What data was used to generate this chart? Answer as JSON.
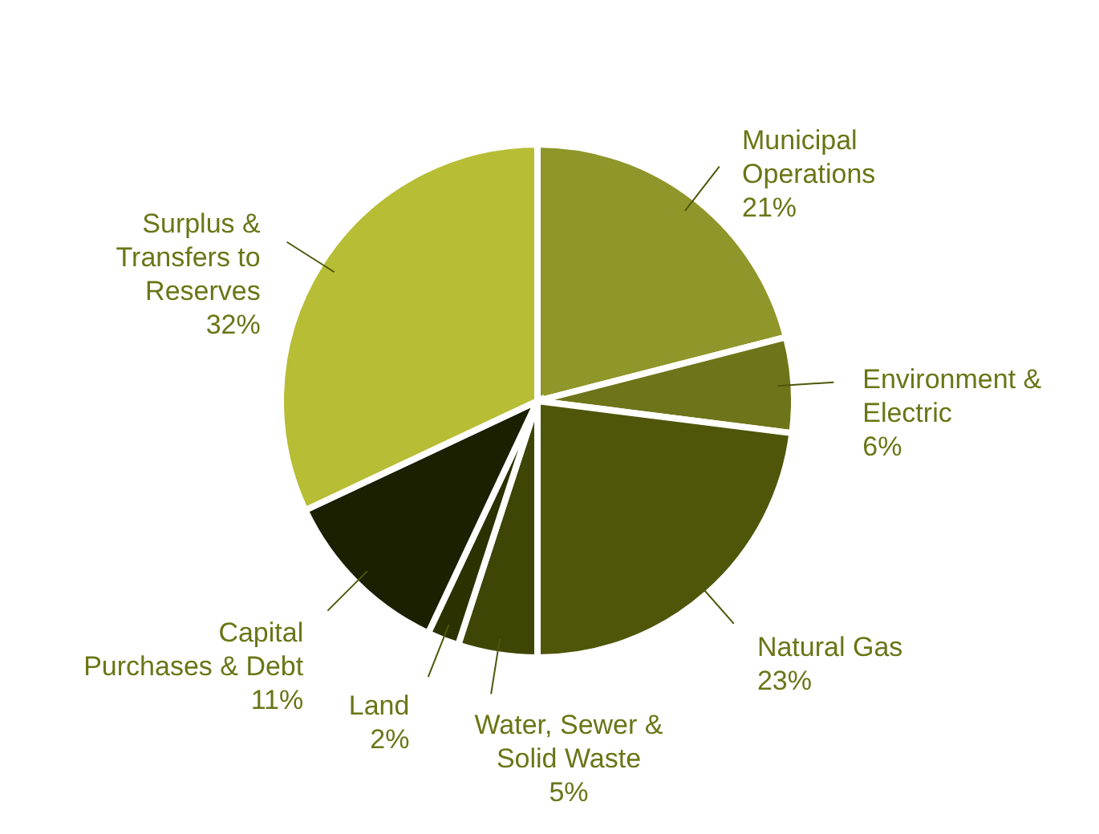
{
  "chart_data": {
    "type": "pie",
    "categories": [
      "Municipal Operations",
      "Environment & Electric",
      "Natural Gas",
      "Water, Sewer & Solid Waste",
      "Land",
      "Capital Purchases & Debt",
      "Surplus & Transfers to Reserves"
    ],
    "values": [
      21,
      6,
      23,
      5,
      2,
      11,
      32
    ],
    "value_labels": [
      "21%",
      "6%",
      "23%",
      "5%",
      "2%",
      "11%",
      "32%"
    ],
    "colors": [
      "#8f962a",
      "#6e7419",
      "#4f560a",
      "#3f4505",
      "#2c3100",
      "#1a2000",
      "#b7bd34"
    ],
    "legend": false
  }
}
